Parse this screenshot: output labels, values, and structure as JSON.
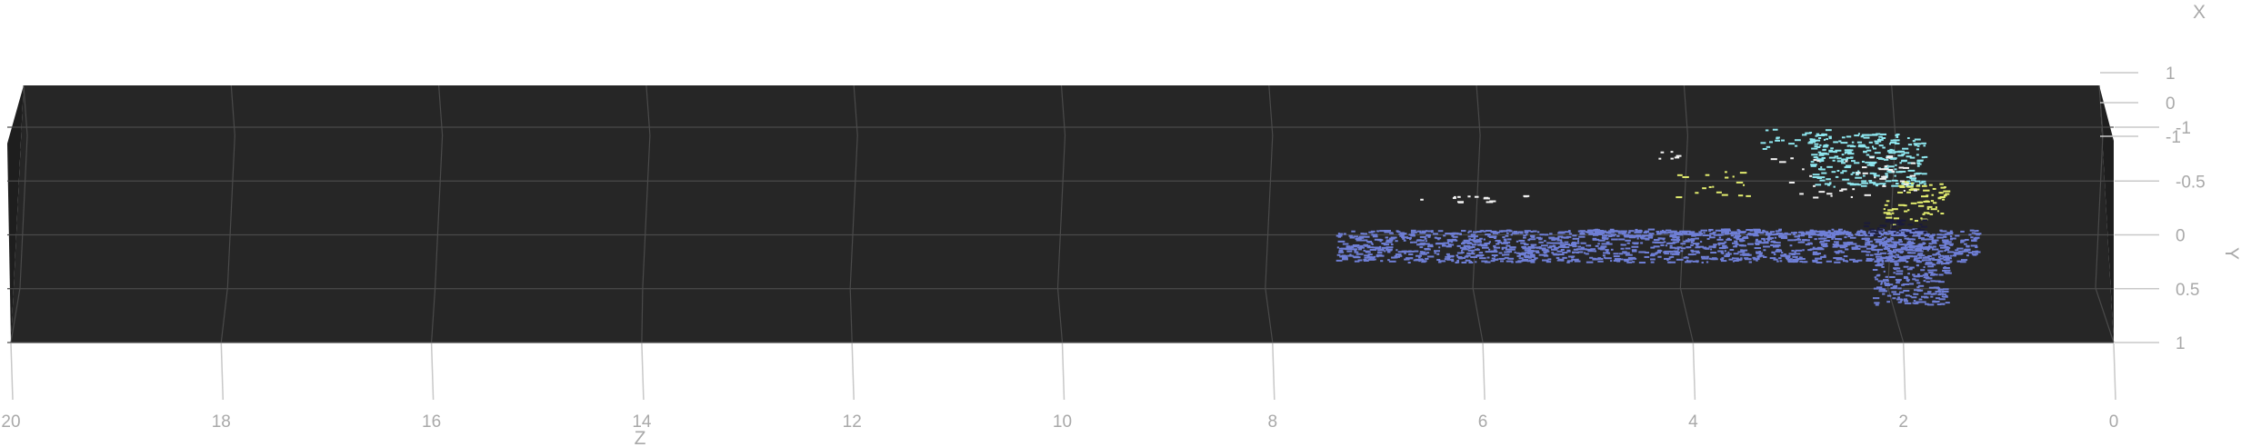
{
  "chart_data": {
    "type": "scatter",
    "xlabel": "Z",
    "ylabel": "Y",
    "zlabel": "X",
    "background": "#262626",
    "pane_edge": "#4a4a4a",
    "tick_color": "#a9a9a9",
    "z_ticks": [
      "20",
      "18",
      "16",
      "14",
      "12",
      "10",
      "8",
      "6",
      "4",
      "2",
      "0"
    ],
    "y_ticks": [
      "-1",
      "-0.5",
      "0",
      "0.5",
      "1"
    ],
    "x_ticks": [
      "1",
      "0",
      "-1"
    ],
    "zlim": [
      20,
      0
    ],
    "ylim": [
      -1,
      1
    ],
    "xlim": [
      -1,
      1
    ],
    "series": [
      {
        "color": "#6f7fd6",
        "clusters": [
          [
            1.3,
            7.4,
            -0.05,
            0.25,
            0.0,
            1.0,
            1400
          ],
          [
            1.6,
            2.3,
            0.05,
            0.65,
            0.0,
            1.0,
            260
          ],
          [
            1.8,
            5.0,
            -0.06,
            0.0,
            0.0,
            1.0,
            200
          ]
        ]
      },
      {
        "color": "#8ee6ee",
        "clusters": [
          [
            1.8,
            2.9,
            -0.95,
            -0.45,
            0.0,
            1.0,
            260
          ],
          [
            2.7,
            3.4,
            -1.0,
            -0.8,
            0.0,
            1.0,
            25
          ]
        ]
      },
      {
        "color": "#e2ec6e",
        "clusters": [
          [
            1.6,
            2.2,
            -0.5,
            -0.1,
            0.0,
            1.0,
            70
          ],
          [
            3.4,
            4.2,
            -0.6,
            -0.35,
            0.0,
            1.0,
            18
          ]
        ]
      },
      {
        "color": "#f2f2f2",
        "clusters": [
          [
            1.9,
            3.3,
            -0.75,
            -0.35,
            0.0,
            1.0,
            45
          ],
          [
            5.6,
            6.6,
            -0.37,
            -0.3,
            0.0,
            1.0,
            14
          ],
          [
            4.1,
            4.4,
            -0.8,
            -0.7,
            0.0,
            1.0,
            6
          ]
        ]
      },
      {
        "color": "#1b1b3a",
        "clusters": [
          [
            1.8,
            2.4,
            -0.15,
            0.0,
            0.0,
            1.0,
            40
          ]
        ]
      }
    ]
  }
}
